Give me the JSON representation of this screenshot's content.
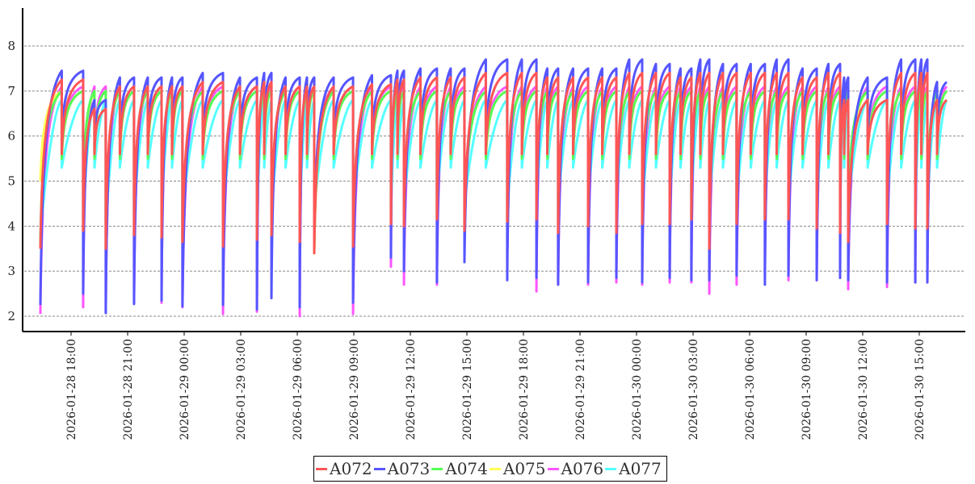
{
  "chart_data": {
    "type": "line",
    "title": "",
    "xlabel": "",
    "ylabel": "",
    "x_units": "hours since 2026-01-28 00:00",
    "xlim": [
      15.43,
      65.7
    ],
    "ylim": [
      1.68,
      8.84
    ],
    "grid": "horizontal dashed",
    "legend_position": "bottom-center",
    "yticks": [
      2,
      3,
      4,
      5,
      6,
      7,
      8
    ],
    "xticks": [
      {
        "value": 18,
        "label": "2026-01-28 18:00"
      },
      {
        "value": 21,
        "label": "2026-01-28 21:00"
      },
      {
        "value": 24,
        "label": "2026-01-29 00:00"
      },
      {
        "value": 27,
        "label": "2026-01-29 03:00"
      },
      {
        "value": 30,
        "label": "2026-01-29 06:00"
      },
      {
        "value": 33,
        "label": "2026-01-29 09:00"
      },
      {
        "value": 36,
        "label": "2026-01-29 12:00"
      },
      {
        "value": 39,
        "label": "2026-01-29 15:00"
      },
      {
        "value": 42,
        "label": "2026-01-29 18:00"
      },
      {
        "value": 45,
        "label": "2026-01-29 21:00"
      },
      {
        "value": 48,
        "label": "2026-01-30 00:00"
      },
      {
        "value": 51,
        "label": "2026-01-30 03:00"
      },
      {
        "value": 54,
        "label": "2026-01-30 06:00"
      },
      {
        "value": 57,
        "label": "2026-01-30 09:00"
      },
      {
        "value": 60,
        "label": "2026-01-30 12:00"
      },
      {
        "value": 63,
        "label": "2026-01-30 15:00"
      }
    ],
    "cycle_starts": [
      16.37,
      18.64,
      19.84,
      21.34,
      22.8,
      23.91,
      26.06,
      27.86,
      28.63,
      30.13,
      30.9,
      32.96,
      34.97,
      35.66,
      37.41,
      38.87,
      41.14,
      42.69,
      43.84,
      45.43,
      46.93,
      48.3,
      49.76,
      50.91,
      51.86,
      53.31,
      54.81,
      56.06,
      57.56,
      58.8,
      59.23,
      61.29,
      62.79,
      63.43
    ],
    "x_end": 64.46,
    "series": [
      {
        "name": "A076",
        "color": "#ff55ff",
        "shape": "concave",
        "peak": 7.1,
        "dip": 5.6,
        "lows": [
          2.05,
          2.2,
          2.1,
          2.3,
          2.3,
          2.2,
          2.05,
          2.1,
          3.1,
          2.0,
          3.8,
          2.05,
          3.1,
          2.7,
          2.7,
          3.9,
          3.2,
          2.55,
          2.7,
          2.7,
          2.75,
          2.7,
          2.75,
          2.75,
          2.5,
          2.7,
          2.9,
          2.8,
          2.8,
          2.85,
          2.6,
          2.65,
          2.75,
          2.75
        ]
      },
      {
        "name": "A077",
        "color": "#55ffff",
        "shape": "slow",
        "peak": 6.8,
        "dip": 5.3,
        "lows": [
          3.8,
          4.2,
          4.0,
          4.3,
          4.4,
          4.3,
          4.3,
          4.2,
          4.3,
          4.2,
          4.4,
          4.4,
          4.4,
          4.5,
          4.6,
          4.5,
          4.4,
          4.6,
          4.5,
          4.6,
          4.6,
          4.4,
          4.5,
          4.6,
          4.5,
          4.5,
          4.6,
          4.5,
          4.5,
          4.4,
          4.5,
          4.5,
          4.5,
          4.5
        ]
      },
      {
        "name": "A075",
        "color": "#ffff55",
        "shape": "concave",
        "peak": 7.0,
        "dip": 5.5,
        "lows": [
          5.0,
          3.9,
          3.5,
          3.8,
          3.75,
          3.65,
          3.55,
          3.7,
          3.8,
          3.65,
          3.4,
          3.55,
          4.05,
          4.0,
          4.15,
          3.9,
          4.1,
          4.15,
          3.85,
          4.0,
          3.85,
          4.05,
          4.05,
          4.15,
          3.5,
          4.05,
          4.15,
          4.15,
          3.95,
          3.85,
          3.65,
          4.05,
          3.95,
          3.95
        ]
      },
      {
        "name": "A074",
        "color": "#55ff55",
        "shape": "concave",
        "peak": 7.0,
        "dip": 5.5,
        "lows": [
          3.6,
          4.3,
          3.5,
          3.8,
          3.75,
          3.65,
          3.55,
          3.7,
          3.8,
          3.65,
          3.4,
          3.55,
          4.05,
          4.0,
          4.15,
          3.9,
          4.1,
          4.15,
          3.85,
          4.0,
          3.85,
          4.05,
          4.05,
          4.15,
          3.5,
          4.05,
          4.15,
          4.15,
          3.95,
          3.85,
          4.3,
          4.05,
          3.95,
          3.95
        ]
      },
      {
        "name": "A073",
        "color": "#5555ff",
        "shape": "concave",
        "dip": 6.0,
        "peaks": [
          7.45,
          6.8,
          7.3,
          7.3,
          7.3,
          7.4,
          7.3,
          7.4,
          7.3,
          7.3,
          7.3,
          7.35,
          7.45,
          7.5,
          7.5,
          7.7,
          7.7,
          7.5,
          7.5,
          7.5,
          7.7,
          7.6,
          7.5,
          7.7,
          7.6,
          7.6,
          7.7,
          7.5,
          7.6,
          7.3,
          7.3,
          7.7,
          7.7,
          7.2
        ],
        "lows": [
          2.25,
          2.5,
          2.07,
          2.27,
          2.35,
          2.22,
          2.25,
          2.15,
          2.4,
          2.2,
          3.8,
          2.3,
          3.3,
          3.0,
          2.75,
          3.2,
          2.8,
          2.85,
          2.7,
          2.75,
          2.85,
          2.75,
          2.85,
          2.8,
          2.8,
          2.9,
          2.7,
          2.9,
          2.8,
          2.85,
          2.8,
          2.75,
          2.75,
          2.75
        ]
      },
      {
        "name": "A072",
        "color": "#ff5555",
        "shape": "concave",
        "dip": 5.6,
        "peaks": [
          7.25,
          6.6,
          7.1,
          7.1,
          7.1,
          7.2,
          7.1,
          7.2,
          7.1,
          7.1,
          7.1,
          7.15,
          7.25,
          7.3,
          7.3,
          7.4,
          7.4,
          7.3,
          7.3,
          7.3,
          7.4,
          7.4,
          7.3,
          7.4,
          7.4,
          7.4,
          7.4,
          7.3,
          7.4,
          6.8,
          6.8,
          7.4,
          7.4,
          6.8
        ],
        "lows": [
          3.5,
          3.9,
          3.5,
          3.8,
          3.75,
          3.65,
          3.55,
          3.7,
          3.8,
          3.65,
          3.4,
          3.55,
          4.05,
          4.0,
          4.15,
          3.9,
          4.1,
          4.15,
          3.85,
          4.0,
          3.85,
          4.05,
          4.05,
          4.15,
          3.5,
          4.05,
          4.15,
          4.15,
          3.95,
          3.85,
          3.65,
          4.05,
          3.95,
          3.95
        ]
      }
    ],
    "legend": [
      {
        "name": "A072",
        "color": "#ff5555"
      },
      {
        "name": "A073",
        "color": "#5555ff"
      },
      {
        "name": "A074",
        "color": "#55ff55"
      },
      {
        "name": "A075",
        "color": "#ffff55"
      },
      {
        "name": "A076",
        "color": "#ff55ff"
      },
      {
        "name": "A077",
        "color": "#55ffff"
      }
    ]
  }
}
